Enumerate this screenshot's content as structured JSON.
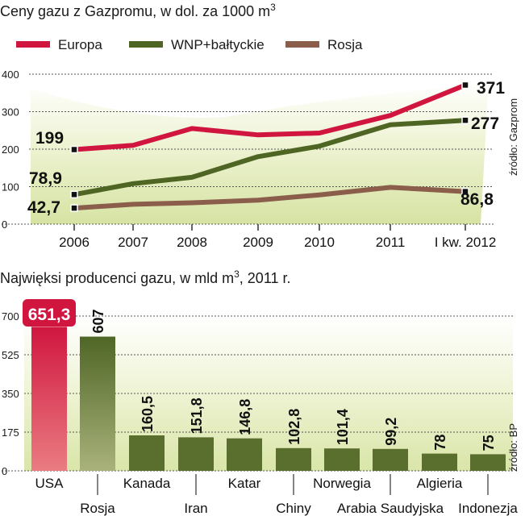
{
  "chart_data": [
    {
      "type": "line",
      "title": "Ceny gazu z Gazpromu, w dol. za 1000 m",
      "title_superscript": "3",
      "x": [
        "2006",
        "2007",
        "2008",
        "2009",
        "2010",
        "2011",
        "I kw. 2012"
      ],
      "ylim": [
        0,
        400
      ],
      "yticks": [
        0,
        100,
        200,
        300,
        400
      ],
      "source": "źródło: Gazprom",
      "series": [
        {
          "name": "Europa",
          "color": "#d0163f",
          "values": [
            199,
            210,
            255,
            238,
            243,
            290,
            371
          ],
          "start_label": "199",
          "end_label": "371"
        },
        {
          "name": "WNP+bałtyckie",
          "color": "#4e6523",
          "values": [
            78.9,
            108,
            125,
            180,
            208,
            265,
            277
          ],
          "start_label": "78,9",
          "end_label": "277"
        },
        {
          "name": "Rosja",
          "color": "#8a5e4b",
          "values": [
            42.7,
            53,
            57,
            64,
            78,
            98,
            86.8
          ],
          "start_label": "42,7",
          "end_label": "86,8"
        }
      ]
    },
    {
      "type": "bar",
      "title": "Najwięksi producenci gazu, w mld m",
      "title_superscript": "3",
      "title_suffix": ", 2011 r.",
      "categories": [
        "USA",
        "Rosja",
        "Kanada",
        "Iran",
        "Katar",
        "Chiny",
        "Norwegia",
        "Arabia Saudyjska",
        "Algieria",
        "Indonezja"
      ],
      "values": [
        651.3,
        607,
        160.5,
        151.8,
        146.8,
        102.8,
        101.4,
        99.2,
        78,
        75
      ],
      "value_labels": [
        "651,3",
        "607",
        "160,5",
        "151,8",
        "146,8",
        "102,8",
        "101,4",
        "99,2",
        "78",
        "75"
      ],
      "ylim": [
        0,
        700
      ],
      "yticks": [
        0,
        175,
        350,
        525,
        700
      ],
      "source": "źródło: BP",
      "colors": {
        "usa": "#d0163f",
        "rosja": "#5a6e2e",
        "others": "#5a6e2e"
      }
    }
  ]
}
